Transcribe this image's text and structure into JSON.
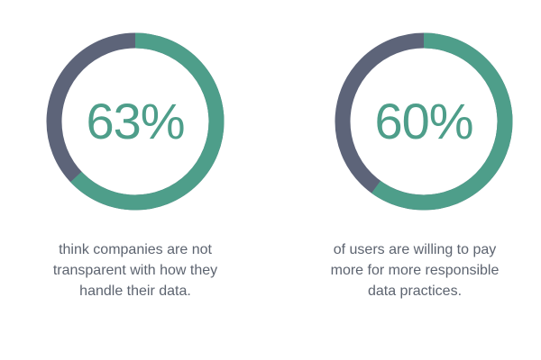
{
  "colors": {
    "accent": "#4e9e8a",
    "track": "#5d6479",
    "text": "#5d6470"
  },
  "chart_data": [
    {
      "type": "pie",
      "variant": "donut",
      "value_percent": 63,
      "label": "63%",
      "caption_lines": [
        "think companies are not",
        "transparent with how they",
        "handle their data."
      ]
    },
    {
      "type": "pie",
      "variant": "donut",
      "value_percent": 60,
      "label": "60%",
      "caption_lines": [
        "of users are willing to pay",
        "more for more responsible",
        "data practices."
      ]
    }
  ]
}
